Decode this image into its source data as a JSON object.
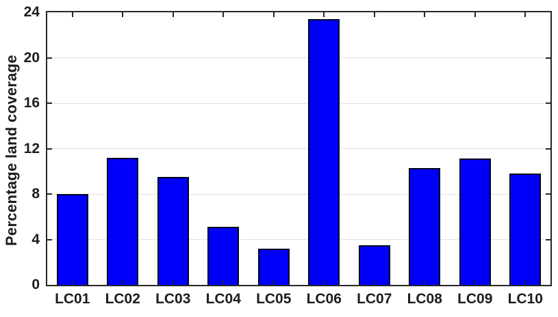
{
  "chart_data": {
    "type": "bar",
    "title": "",
    "xlabel": "",
    "ylabel": "Percentage land coverage",
    "categories": [
      "LC01",
      "LC02",
      "LC03",
      "LC04",
      "LC05",
      "LC06",
      "LC07",
      "LC08",
      "LC09",
      "LC10"
    ],
    "values": [
      8.0,
      11.2,
      9.5,
      5.1,
      3.2,
      23.4,
      3.5,
      10.3,
      11.1,
      9.8
    ],
    "ylim": [
      0,
      24
    ],
    "yticks": [
      0,
      4,
      8,
      12,
      16,
      20,
      24
    ],
    "grid": true,
    "legend": false,
    "box": true,
    "tick_direction": "in",
    "bar_width_fraction": 0.62,
    "colors": {
      "bar_fill": "#0000fa",
      "bar_edge": "#00001e",
      "grid": "#e3e3e3",
      "axis": "#262626",
      "text": "#1c1c1c",
      "background": "#ffffff"
    }
  }
}
